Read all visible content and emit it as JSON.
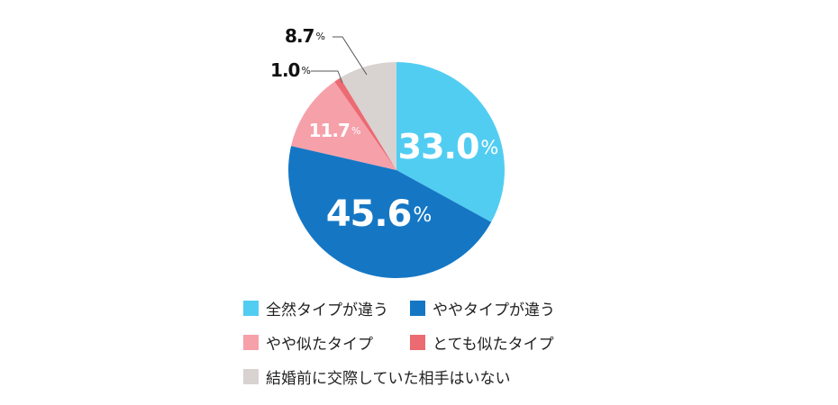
{
  "chart_data": {
    "type": "pie",
    "slices": [
      {
        "label": "全然タイプが違う",
        "value": 33.0,
        "display": "33.0",
        "color": "#52cdf2"
      },
      {
        "label": "ややタイプが違う",
        "value": 45.6,
        "display": "45.6",
        "color": "#1577c4"
      },
      {
        "label": "やや似たタイプ",
        "value": 11.7,
        "display": "11.7",
        "color": "#f6a0aa"
      },
      {
        "label": "とても似たタイプ",
        "value": 1.0,
        "display": "1.0",
        "color": "#ec6a72"
      },
      {
        "label": "結婚前に交際していた相手はいない",
        "value": 8.7,
        "display": "8.7",
        "color": "#d8d2d1"
      }
    ],
    "unit": "%",
    "legend_position": "bottom"
  }
}
